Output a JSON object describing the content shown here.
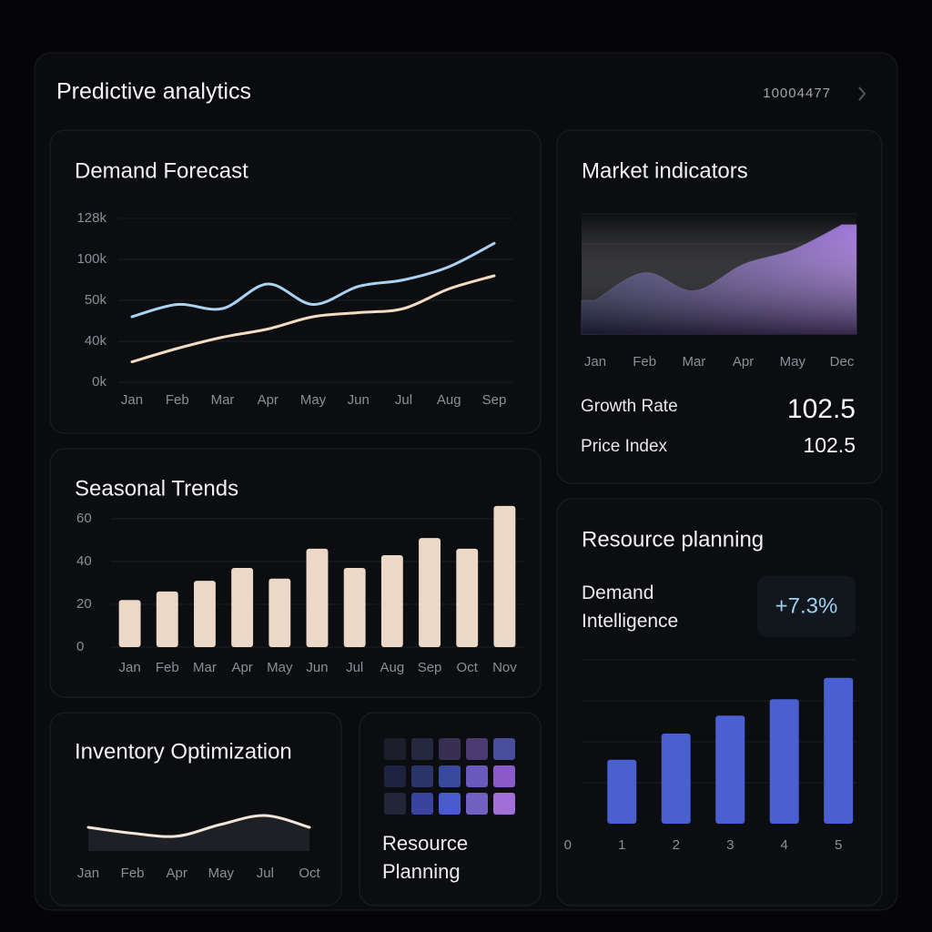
{
  "header": {
    "title": "Predictive analytics",
    "id": "10004477"
  },
  "chart_data": [
    {
      "type": "line",
      "title": "Demand Forecast",
      "categories": [
        "Jan",
        "Feb",
        "Mar",
        "Apr",
        "May",
        "Jun",
        "Jul",
        "Aug",
        "Sep"
      ],
      "series": [
        {
          "color": "#a9d3f0",
          "values": [
            46000,
            49000,
            48000,
            70000,
            49000,
            67000,
            75000,
            91000,
            111000
          ]
        },
        {
          "color": "#f3dcc0",
          "values": [
            20000,
            33000,
            41000,
            43000,
            46000,
            47000,
            48000,
            64000,
            80000
          ]
        }
      ],
      "ylim": [
        0,
        128000
      ],
      "yticks": [
        {
          "value": 0,
          "label": "0k"
        },
        {
          "value": 40000,
          "label": "40k"
        },
        {
          "value": 50000,
          "label": "50k"
        },
        {
          "value": 100000,
          "label": "100k"
        },
        {
          "value": 128000,
          "label": "128k"
        }
      ],
      "grid": true
    },
    {
      "type": "bar",
      "title": "Seasonal Trends",
      "categories": [
        "Jan",
        "Feb",
        "Mar",
        "Apr",
        "May",
        "Jun",
        "Jul",
        "Aug",
        "Sep",
        "Oct",
        "Nov"
      ],
      "values": [
        22,
        26,
        31,
        37,
        32,
        46,
        37,
        43,
        51,
        46,
        66
      ],
      "color": "#ecd8c6",
      "ylim": [
        0,
        66
      ],
      "yticks": [
        0,
        20,
        40,
        60
      ],
      "grid": true
    },
    {
      "type": "area",
      "title": "Market indicators",
      "categories": [
        "Jan",
        "Feb",
        "Mar",
        "Apr",
        "May",
        "Dec"
      ],
      "values": [
        28,
        51,
        36,
        58,
        70,
        91
      ],
      "color": "#9b6fd6",
      "ylim": [
        0,
        100
      ]
    },
    {
      "type": "line",
      "title": "Inventory Optimization",
      "categories": [
        "Jan",
        "Feb",
        "Apr",
        "May",
        "Jul",
        "Oct"
      ],
      "series": [
        {
          "color": "#f2e6d8",
          "values": [
            40,
            30,
            25,
            45,
            60,
            40
          ]
        }
      ],
      "ylim": [
        0,
        100
      ]
    },
    {
      "type": "bar",
      "title": "Resource planning",
      "x": [
        1,
        2,
        3,
        4,
        5
      ],
      "values": [
        39,
        55,
        66,
        76,
        89
      ],
      "color": "#4a5fd0",
      "xlim": [
        -0.4,
        5.4
      ],
      "xticks": [
        0,
        1,
        2,
        3,
        4,
        5
      ],
      "ylim": [
        0,
        100
      ]
    }
  ],
  "market_stats": [
    {
      "label": "Growth Rate",
      "value": 102.5
    },
    {
      "label": "Price Index",
      "value": 102.5
    }
  ],
  "resource_card": {
    "label": "Demand Intelligence",
    "change": "+7.3%"
  },
  "resource_tile": {
    "label": "Resource Planning"
  }
}
